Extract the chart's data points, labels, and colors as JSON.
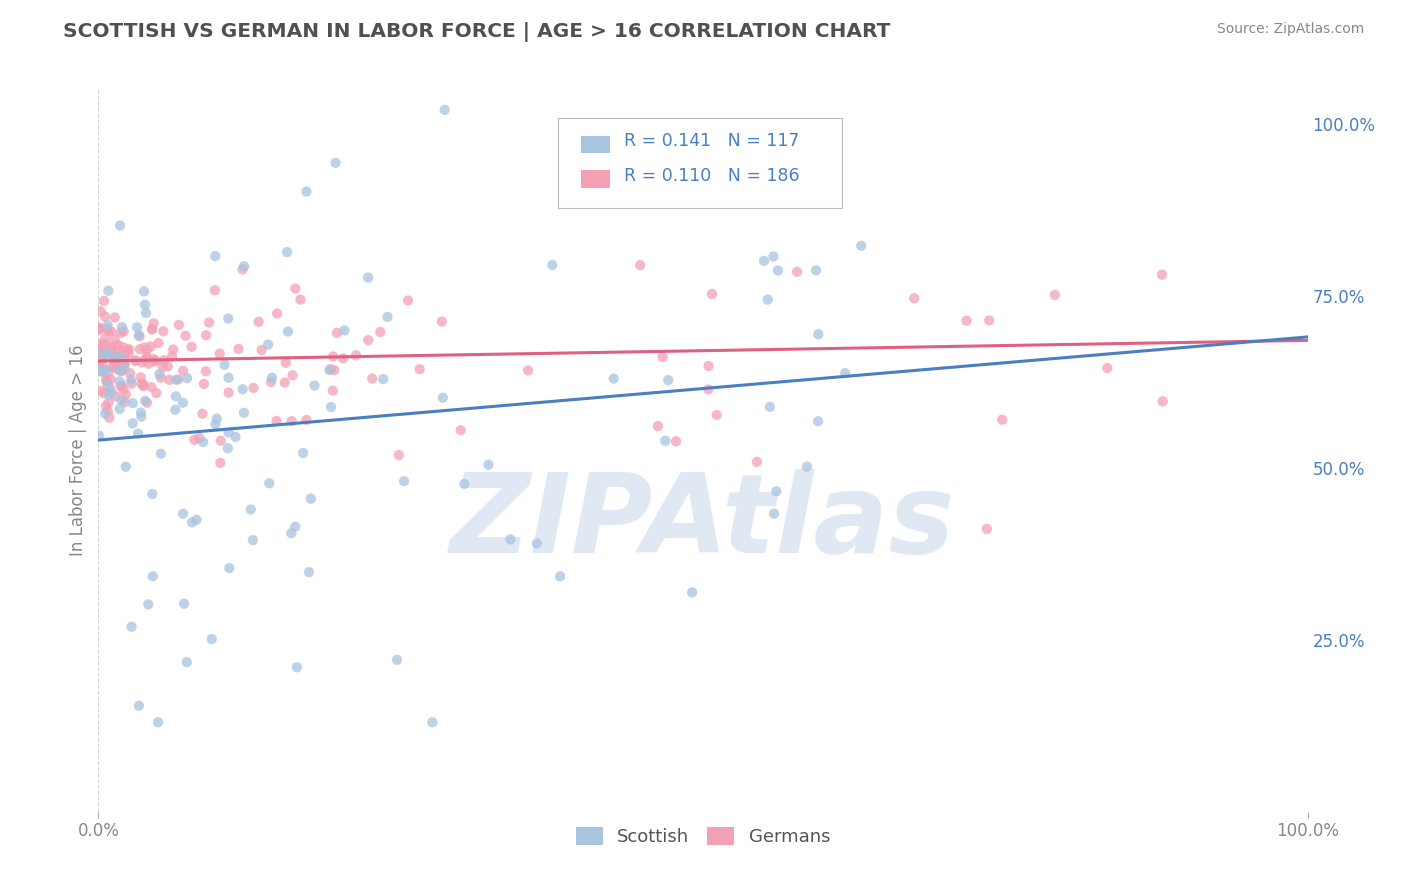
{
  "title": "SCOTTISH VS GERMAN IN LABOR FORCE | AGE > 16 CORRELATION CHART",
  "source": "Source: ZipAtlas.com",
  "ylabel": "In Labor Force | Age > 16",
  "xlim": [
    0.0,
    1.0
  ],
  "ylim": [
    0.0,
    1.05
  ],
  "y_ticks_right": [
    0.25,
    0.5,
    0.75,
    1.0
  ],
  "y_tick_labels_right": [
    "25.0%",
    "50.0%",
    "75.0%",
    "100.0%"
  ],
  "scottish_color": "#a8c4e0",
  "german_color": "#f4a0b4",
  "scottish_line_color": "#4a7fc1",
  "german_line_color": "#e06080",
  "scatter_alpha": 0.75,
  "scatter_size": 55,
  "R_scottish": 0.141,
  "N_scottish": 117,
  "R_german": 0.11,
  "N_german": 186,
  "text_color": "#4a7fc1",
  "title_color": "#505050",
  "background_color": "#ffffff",
  "grid_color": "#cccccc",
  "watermark": "ZIPAtlas",
  "watermark_color": "#c8d8ea",
  "scottish_line_start_y": 0.54,
  "scottish_line_end_y": 0.69,
  "german_line_start_y": 0.655,
  "german_line_end_y": 0.685
}
